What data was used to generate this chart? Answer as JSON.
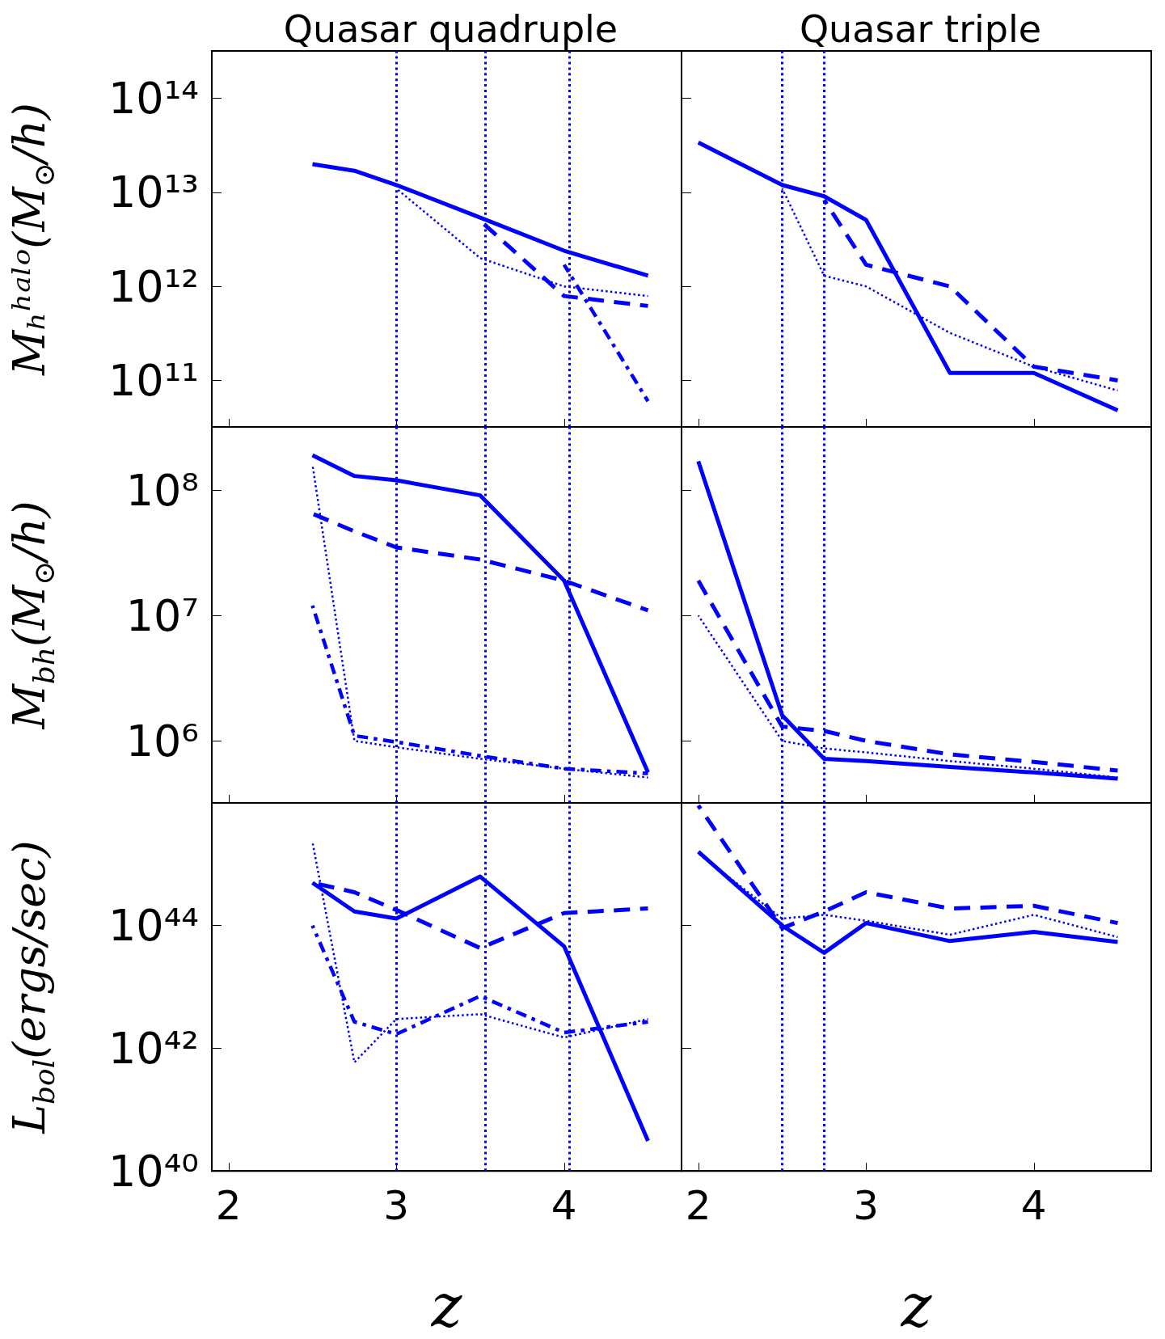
{
  "chart_data": [
    {
      "type": "line",
      "title": "Quasar quadruple",
      "ylabel": "Mₕʰᵃˡᵒ(M$_{⊙}$/h)",
      "x": [
        2.5,
        2.75,
        3,
        3.5,
        4,
        4.5
      ],
      "xlim": [
        1.9,
        4.7
      ],
      "xticks": [
        2,
        3,
        4
      ],
      "ylim": [
        32000000000.0,
        320000000000000.0
      ],
      "yticks": [
        {
          "value": 100000000000.0,
          "label": "10¹¹"
        },
        {
          "value": 1000000000000.0,
          "label": "10¹²"
        },
        {
          "value": 10000000000000.0,
          "label": "10¹³"
        },
        {
          "value": 100000000000000.0,
          "label": "10¹⁴"
        }
      ],
      "log": "y",
      "tick_labels": "y",
      "ref_lines": [
        {
          "axis": "x",
          "value": 3,
          "color": "#0000ff",
          "line_style": "dotted"
        },
        {
          "axis": "x",
          "value": 3.53,
          "color": "#0000ff",
          "line_style": "dotted"
        },
        {
          "axis": "x",
          "value": 4.03,
          "color": "#0000ff",
          "line_style": "dotted"
        }
      ],
      "series": [
        {
          "color": "#0000ff",
          "line_style": "solid",
          "values": [
            20000000000000.0,
            17000000000000.0,
            12000000000000.0,
            5400000000000.0,
            2400000000000.0,
            1300000000000.0
          ]
        },
        {
          "color": "#0000ff",
          "line_style": "dashed",
          "values": [
            null,
            null,
            null,
            5000000000000.0,
            790000000000.0,
            620000000000.0
          ]
        },
        {
          "color": "#0000ff",
          "line_style": "dashdot",
          "values": [
            null,
            null,
            null,
            null,
            1700000000000.0,
            60000000000.0
          ]
        },
        {
          "color": "#0000ff",
          "line_style": "dotted",
          "values": [
            null,
            null,
            11000000000000.0,
            2000000000000.0,
            1000000000000.0,
            790000000000.0
          ]
        }
      ]
    },
    {
      "type": "line",
      "title": "Quasar triple",
      "x": [
        2,
        2.5,
        2.75,
        3,
        3.5,
        4,
        4.5
      ],
      "xlim": [
        1.9,
        4.7
      ],
      "xticks": [
        2,
        3,
        4
      ],
      "ylim": [
        32000000000.0,
        320000000000000.0
      ],
      "yticks": [
        {
          "value": 100000000000.0,
          "label": null
        },
        {
          "value": 1000000000000.0,
          "label": null
        },
        {
          "value": 10000000000000.0,
          "label": null
        },
        {
          "value": 100000000000000.0,
          "label": null
        }
      ],
      "log": "y",
      "tick_labels": false,
      "ref_lines": [
        {
          "axis": "x",
          "value": 2.5,
          "color": "#0000ff",
          "line_style": "dotted"
        },
        {
          "axis": "x",
          "value": 2.75,
          "color": "#0000ff",
          "line_style": "dotted"
        }
      ],
      "series": [
        {
          "color": "#0000ff",
          "line_style": "solid",
          "values": [
            34000000000000.0,
            12000000000000.0,
            9100000000000.0,
            5100000000000.0,
            120000000000.0,
            120000000000.0,
            48000000000.0
          ]
        },
        {
          "color": "#0000ff",
          "line_style": "dashed",
          "values": [
            null,
            null,
            8300000000000.0,
            1700000000000.0,
            1000000000000.0,
            140000000000.0,
            100000000000.0
          ]
        },
        {
          "color": "#0000ff",
          "line_style": "dotted",
          "values": [
            null,
            11000000000000.0,
            1300000000000.0,
            1000000000000.0,
            320000000000.0,
            140000000000.0,
            78000000000.0
          ]
        }
      ]
    },
    {
      "type": "line",
      "ylabel": "M$_{bh}$(M$_{⊙}$/h)",
      "x": [
        2.5,
        2.75,
        3,
        3.5,
        4,
        4.5
      ],
      "xlim": [
        1.9,
        4.7
      ],
      "xticks": [
        2,
        3,
        4
      ],
      "ylim": [
        320000.0,
        320000000.0
      ],
      "yticks": [
        {
          "value": 1000000.0,
          "label": "10⁶"
        },
        {
          "value": 10000000.0,
          "label": "10⁷"
        },
        {
          "value": 100000000.0,
          "label": "10⁸"
        }
      ],
      "log": "y",
      "tick_labels": "y",
      "ref_lines": [
        {
          "axis": "x",
          "value": 3,
          "color": "#0000ff",
          "line_style": "dotted"
        },
        {
          "axis": "x",
          "value": 3.53,
          "color": "#0000ff",
          "line_style": "dotted"
        },
        {
          "axis": "x",
          "value": 4.03,
          "color": "#0000ff",
          "line_style": "dotted"
        }
      ],
      "series": [
        {
          "color": "#0000ff",
          "line_style": "solid",
          "values": [
            190000000.0,
            130000000.0,
            120000000.0,
            91000000.0,
            19000000.0,
            560000.0
          ]
        },
        {
          "color": "#0000ff",
          "line_style": "dashed",
          "values": [
            65000000.0,
            47000000.0,
            35000000.0,
            28000000.0,
            19000000.0,
            11000000.0
          ]
        },
        {
          "color": "#0000ff",
          "line_style": "dashdot",
          "values": [
            12000000.0,
            1100000.0,
            980000.0,
            760000.0,
            600000.0,
            550000.0
          ]
        },
        {
          "color": "#0000ff",
          "line_style": "dotted",
          "values": [
            160000000.0,
            1000000.0,
            890000.0,
            720000.0,
            600000.0,
            510000.0
          ]
        }
      ]
    },
    {
      "type": "line",
      "x": [
        2,
        2.5,
        2.75,
        3,
        3.5,
        4,
        4.5
      ],
      "xlim": [
        1.9,
        4.7
      ],
      "xticks": [
        2,
        3,
        4
      ],
      "ylim": [
        320000.0,
        320000000.0
      ],
      "yticks": [
        {
          "value": 1000000.0,
          "label": null
        },
        {
          "value": 10000000.0,
          "label": null
        },
        {
          "value": 100000000.0,
          "label": null
        }
      ],
      "log": "y",
      "tick_labels": false,
      "ref_lines": [
        {
          "axis": "x",
          "value": 2.5,
          "color": "#0000ff",
          "line_style": "dotted"
        },
        {
          "axis": "x",
          "value": 2.75,
          "color": "#0000ff",
          "line_style": "dotted"
        }
      ],
      "series": [
        {
          "color": "#0000ff",
          "line_style": "solid",
          "values": [
            170000000.0,
            1600000.0,
            720000.0,
            690000.0,
            620000.0,
            560000.0,
            500000.0
          ]
        },
        {
          "color": "#0000ff",
          "line_style": "dashed",
          "values": [
            19000000.0,
            1300000.0,
            1200000.0,
            1000000.0,
            780000.0,
            680000.0,
            580000.0
          ]
        },
        {
          "color": "#0000ff",
          "line_style": "dotted",
          "values": [
            10000000.0,
            1000000.0,
            870000.0,
            810000.0,
            690000.0,
            600000.0,
            510000.0
          ]
        }
      ]
    },
    {
      "type": "line",
      "ylabel": "L$_{bol}$(ergs/sec)",
      "xlabel": "z",
      "x": [
        2.5,
        2.75,
        3,
        3.5,
        4,
        4.5
      ],
      "xlim": [
        1.9,
        4.7
      ],
      "xticks": [
        2,
        3,
        4
      ],
      "ylim": [
        1e+40,
        1e+46
      ],
      "yticks": [
        {
          "value": 1e+40,
          "label": "10⁴⁰"
        },
        {
          "value": 1e+42,
          "label": "10⁴²"
        },
        {
          "value": 1e+44,
          "label": "10⁴⁴"
        }
      ],
      "log": "y",
      "ref_lines": [
        {
          "axis": "x",
          "value": 3,
          "color": "#0000ff",
          "line_style": "dotted"
        },
        {
          "axis": "x",
          "value": 3.53,
          "color": "#0000ff",
          "line_style": "dotted"
        },
        {
          "axis": "x",
          "value": 4.03,
          "color": "#0000ff",
          "line_style": "dotted"
        }
      ],
      "series": [
        {
          "color": "#0000ff",
          "line_style": "solid",
          "values": [
            5e+44,
            1.7e+44,
            1.3e+44,
            6.3e+44,
            4.6e+43,
            3.1e+40
          ]
        },
        {
          "color": "#0000ff",
          "line_style": "dashed",
          "values": [
            5e+44,
            3.5e+44,
            1.8e+44,
            4.3e+43,
            1.6e+44,
            1.9e+44
          ]
        },
        {
          "color": "#0000ff",
          "line_style": "dashdot",
          "values": [
            1e+44,
            2.7e+42,
            1.7e+42,
            7.1e+42,
            1.8e+42,
            2.7e+42
          ]
        },
        {
          "color": "#0000ff",
          "line_style": "dotted",
          "values": [
            2.3e+45,
            5.9e+41,
            3e+42,
            3.6e+42,
            1.5e+42,
            3e+42
          ]
        }
      ]
    },
    {
      "type": "line",
      "xlabel": "z",
      "x": [
        2,
        2.5,
        2.75,
        3,
        3.5,
        4,
        4.5
      ],
      "xlim": [
        1.9,
        4.7
      ],
      "xticks": [
        2,
        3,
        4
      ],
      "ylim": [
        1e+40,
        1e+46
      ],
      "yticks": [
        {
          "value": 1e+40,
          "label": null
        },
        {
          "value": 1e+42,
          "label": null
        },
        {
          "value": 1e+44,
          "label": null
        }
      ],
      "log": "y",
      "tick_labels": "x",
      "ref_lines": [
        {
          "axis": "x",
          "value": 2.5,
          "color": "#0000ff",
          "line_style": "dotted"
        },
        {
          "axis": "x",
          "value": 2.75,
          "color": "#0000ff",
          "line_style": "dotted"
        }
      ],
      "series": [
        {
          "color": "#0000ff",
          "line_style": "solid",
          "values": [
            1.6e+45,
            1e+44,
            3.6e+43,
            1.1e+44,
            5.6e+43,
            7.9e+43,
            5.4e+43
          ]
        },
        {
          "color": "#0000ff",
          "line_style": "dashed",
          "values": [
            9.1e+45,
            9.1e+43,
            1.7e+44,
            3.5e+44,
            1.9e+44,
            2.1e+44,
            1.1e+44
          ]
        },
        {
          "color": "#0000ff",
          "line_style": "dotted",
          "values": [
            1.5e+45,
            1.3e+44,
            1.5e+44,
            1.2e+44,
            7.1e+43,
            1.5e+44,
            6.5e+43
          ]
        }
      ]
    }
  ]
}
